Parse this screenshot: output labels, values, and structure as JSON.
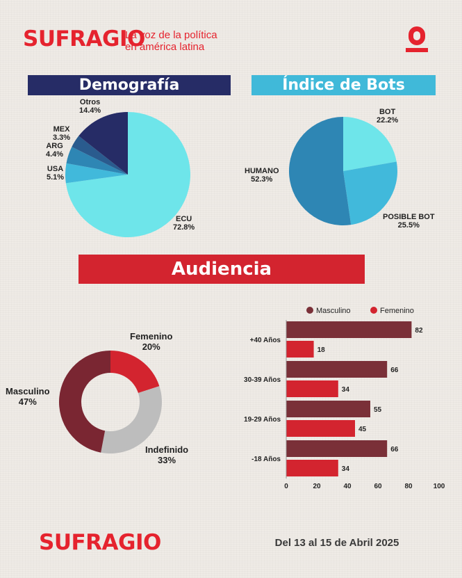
{
  "brand": {
    "logo_text": "SUFRAGIO",
    "tagline_line1": "La voz de la política",
    "tagline_line2": "en américa latina"
  },
  "footer": {
    "logo_text": "SUFRAGIO",
    "date": "Del 13 al 15 de Abril 2025"
  },
  "colors": {
    "brand_red": "#e5232e",
    "navy": "#262c66",
    "cyan": "#40b9d9"
  },
  "sections": {
    "demografia": "Demografía",
    "bots": "Índice de Bots",
    "audiencia": "Audiencia"
  },
  "chart_data": [
    {
      "type": "pie",
      "title": "Demografía",
      "slices": [
        {
          "label": "ECU",
          "value": 72.8,
          "display": "72.8%",
          "color": "#6ee5ea"
        },
        {
          "label": "USA",
          "value": 5.1,
          "display": "5.1%",
          "color": "#41b9db"
        },
        {
          "label": "ARG",
          "value": 4.4,
          "display": "4.4%",
          "color": "#2e86b4"
        },
        {
          "label": "MEX",
          "value": 3.3,
          "display": "3.3%",
          "color": "#2a5b8e"
        },
        {
          "label": "Otros",
          "value": 14.4,
          "display": "14.4%",
          "color": "#262c66"
        }
      ]
    },
    {
      "type": "pie",
      "title": "Índice de Bots",
      "slices": [
        {
          "label": "BOT",
          "value": 22.2,
          "display": "22.2%",
          "color": "#6ee5ea"
        },
        {
          "label": "POSIBLE BOT",
          "value": 25.5,
          "display": "25.5%",
          "color": "#41b9db"
        },
        {
          "label": "HUMANO",
          "value": 52.3,
          "display": "52.3%",
          "color": "#2e86b4"
        }
      ]
    },
    {
      "type": "pie",
      "subtype": "donut",
      "slices": [
        {
          "label": "Femenino",
          "value": 20,
          "display": "20%",
          "color": "#d3242f"
        },
        {
          "label": "Indefinido",
          "value": 33,
          "display": "33%",
          "color": "#bdbdbd"
        },
        {
          "label": "Masculino",
          "value": 47,
          "display": "47%",
          "color": "#7a2632"
        }
      ]
    },
    {
      "type": "bar",
      "orientation": "horizontal",
      "categories": [
        "+40 Años",
        "30-39 Años",
        "19-29 Años",
        "-18 Años"
      ],
      "series": [
        {
          "name": "Masculino",
          "values": [
            82,
            66,
            55,
            66
          ],
          "color": "#7a3038"
        },
        {
          "name": "Femenino",
          "values": [
            18,
            34,
            45,
            34
          ],
          "color": "#d3242f"
        }
      ],
      "xlim": [
        0,
        100
      ],
      "xticks": [
        "0",
        "20",
        "40",
        "60",
        "80",
        "100"
      ],
      "legend": "top",
      "grid": false
    }
  ]
}
